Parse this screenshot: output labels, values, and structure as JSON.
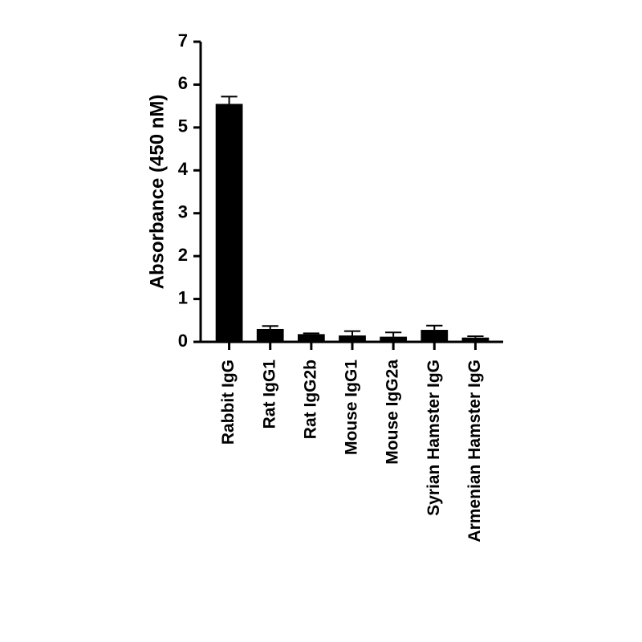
{
  "chart_data": {
    "type": "bar",
    "ylabel": "Absorbance (450 nM)",
    "categories": [
      "Rabbit IgG",
      "Rat IgG1",
      "Rat IgG2b",
      "Mouse IgG1",
      "Mouse IgG2a",
      "Syrian Hamster IgG",
      "Armenian Hamster IgG"
    ],
    "values": [
      5.55,
      0.3,
      0.18,
      0.15,
      0.12,
      0.28,
      0.1
    ],
    "errors": [
      0.17,
      0.07,
      0.02,
      0.1,
      0.1,
      0.1,
      0.03
    ],
    "color": "#000000",
    "ylim": [
      0,
      7
    ],
    "yticks": [
      0,
      1,
      2,
      3,
      4,
      5,
      6,
      7
    ]
  }
}
